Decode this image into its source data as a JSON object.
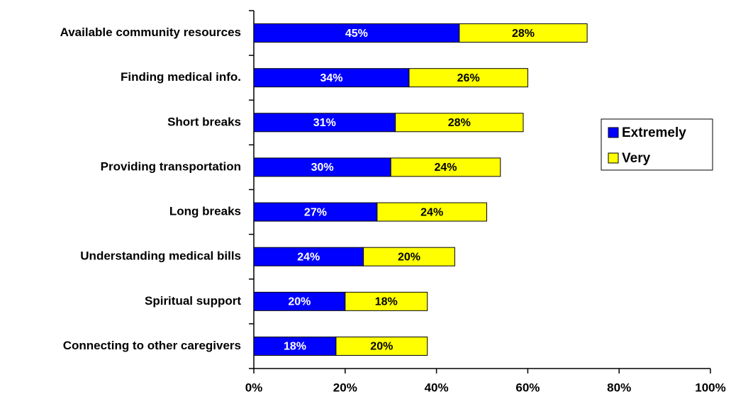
{
  "chart_data": {
    "type": "stacked_barh",
    "categories": [
      "Available community resources",
      "Finding medical info.",
      "Short breaks",
      "Providing transportation",
      "Long breaks",
      "Understanding medical bills",
      "Spiritual support",
      "Connecting to other caregivers"
    ],
    "series": [
      {
        "name": "Extremely",
        "color": "#0000ff",
        "label_color": "#ffffff",
        "values": [
          45,
          34,
          31,
          30,
          27,
          24,
          20,
          18
        ],
        "value_labels": [
          "45%",
          "34%",
          "31%",
          "30%",
          "27%",
          "24%",
          "20%",
          "18%"
        ]
      },
      {
        "name": "Very",
        "color": "#ffff00",
        "label_color": "#000000",
        "values": [
          28,
          26,
          28,
          24,
          24,
          20,
          18,
          20
        ],
        "value_labels": [
          "28%",
          "26%",
          "28%",
          "24%",
          "24%",
          "20%",
          "18%",
          "20%"
        ]
      }
    ],
    "xlim": [
      0,
      100
    ],
    "xticks": [
      {
        "value": 0,
        "label": "0%"
      },
      {
        "value": 20,
        "label": "20%"
      },
      {
        "value": 40,
        "label": "40%"
      },
      {
        "value": 60,
        "label": "60%"
      },
      {
        "value": 80,
        "label": "80%"
      },
      {
        "value": 100,
        "label": "100%"
      }
    ],
    "legend": "right"
  }
}
